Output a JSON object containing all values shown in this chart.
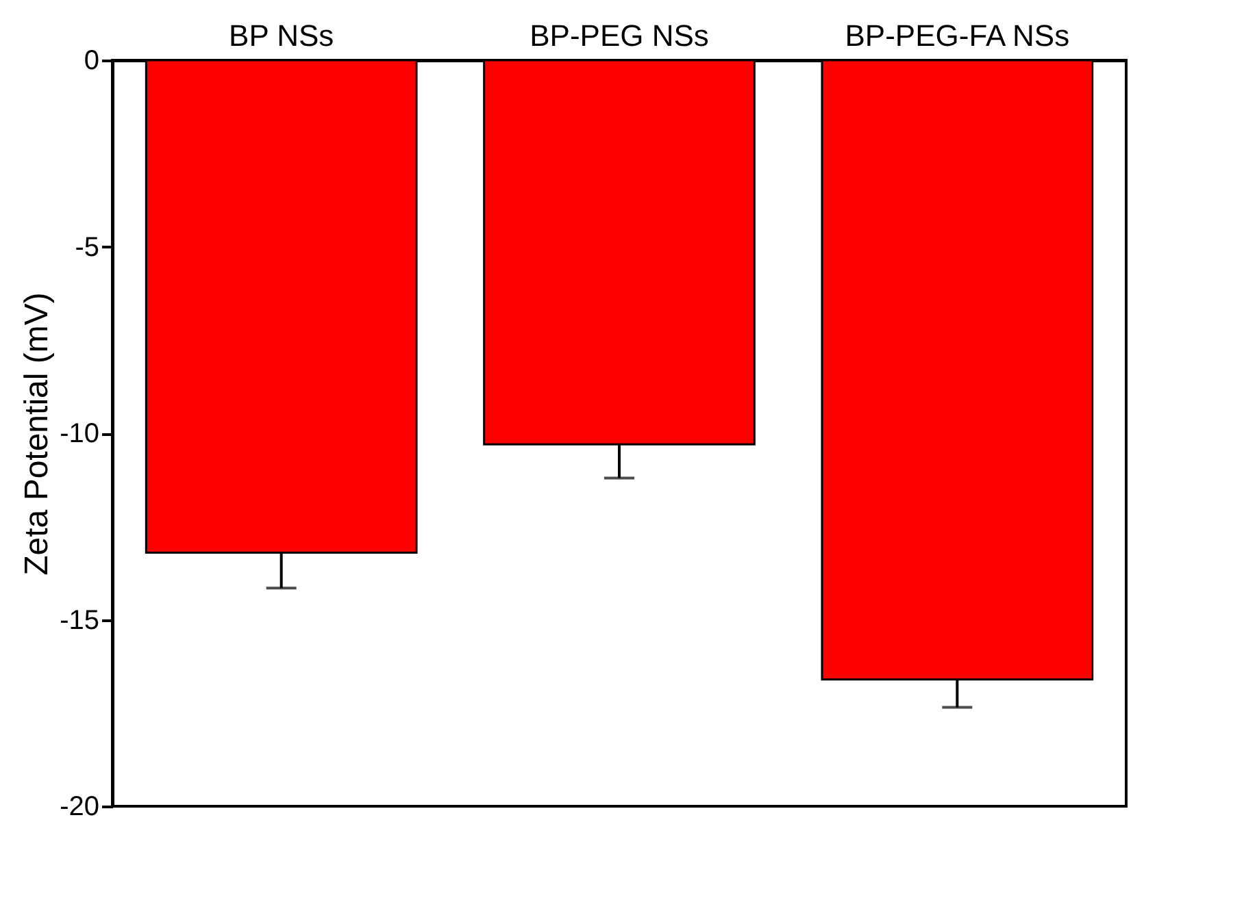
{
  "chart_data": {
    "type": "bar",
    "ylabel": "Zeta Potential (mV)",
    "categories": [
      "BP NSs",
      "BP-PEG NSs",
      "BP-PEG-FA NSs"
    ],
    "values": [
      -13.2,
      -10.3,
      -16.6
    ],
    "errors": [
      [
        -14.15,
        -13.2
      ],
      [
        -11.2,
        -10.3
      ],
      [
        -17.35,
        -16.6
      ]
    ],
    "color": "#ff0000",
    "ylim": [
      -20,
      0
    ],
    "yticks": [
      0,
      -5,
      -10,
      -15,
      -20
    ],
    "grid": false
  }
}
